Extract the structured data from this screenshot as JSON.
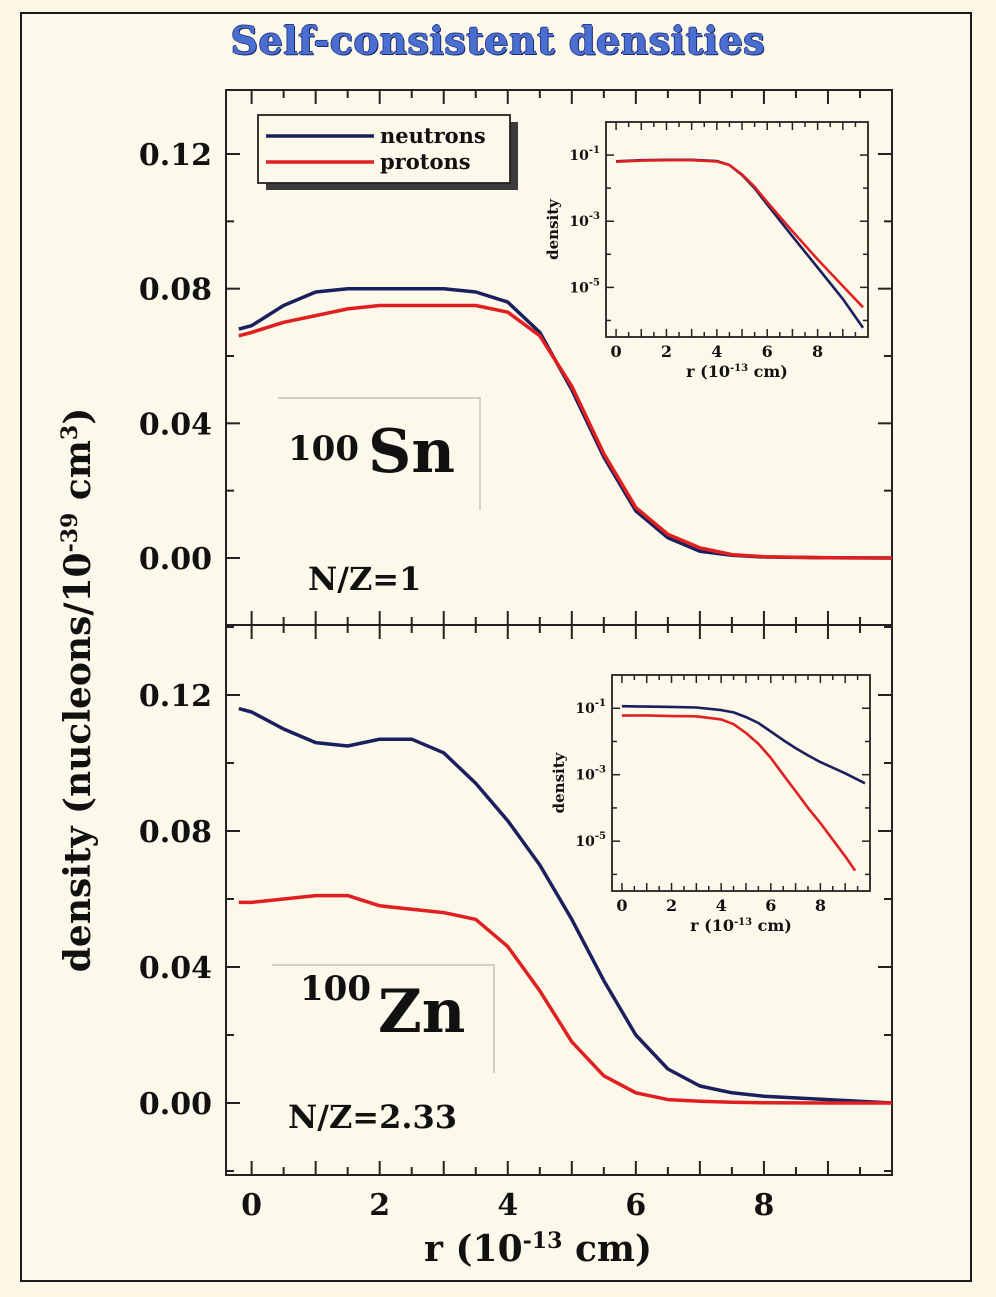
{
  "title": "Self-consistent densities",
  "ylabel": {
    "main": "density (nucleons/10",
    "exp": "-39",
    "unit": " cm",
    "unit_exp": "3",
    "close": ")"
  },
  "xlabel": {
    "main": "r (10",
    "exp": "-13",
    "unit": " cm)"
  },
  "colors": {
    "neutrons": "#1a1f5e",
    "protons": "#e02020"
  },
  "legend": {
    "neutrons": "neutrons",
    "protons": "protons"
  },
  "x_ticks": [
    "0",
    "2",
    "4",
    "6",
    "8"
  ],
  "y_ticks": [
    "0.00",
    "0.04",
    "0.08",
    "0.12"
  ],
  "panels": [
    {
      "nucleus_mass": "100",
      "nucleus_symbol": "Sn",
      "ratio_label": "N/Z=1"
    },
    {
      "nucleus_mass": "100",
      "nucleus_symbol": "Zn",
      "ratio_label": "N/Z=2.33"
    }
  ],
  "inset": {
    "ylabel": "density",
    "xlabel_main": "r (10",
    "xlabel_exp": "-13",
    "xlabel_unit": " cm)",
    "x_ticks": [
      "0",
      "2",
      "4",
      "6",
      "8"
    ],
    "y_ticks": [
      {
        "base": "10",
        "exp": "-1"
      },
      {
        "base": "10",
        "exp": "-3"
      },
      {
        "base": "10",
        "exp": "-5"
      }
    ]
  },
  "chart_data": [
    {
      "type": "line",
      "title": "Self-consistent densities",
      "xlabel": "r (10-13 cm)",
      "ylabel": "density (nucleons/10-39 cm3)",
      "xlim": [
        -0.4,
        10
      ],
      "ylim": [
        -0.02,
        0.14
      ],
      "annotations": [
        "100Sn",
        "N/Z=1"
      ],
      "legend": "top-left",
      "series": [
        {
          "name": "neutrons",
          "x": [
            -0.2,
            0,
            0.5,
            1,
            1.5,
            2,
            2.5,
            3,
            3.5,
            4,
            4.5,
            5,
            5.5,
            6,
            6.5,
            7,
            7.5,
            8,
            9,
            10
          ],
          "y": [
            0.068,
            0.069,
            0.075,
            0.079,
            0.08,
            0.08,
            0.08,
            0.08,
            0.079,
            0.076,
            0.067,
            0.05,
            0.03,
            0.014,
            0.006,
            0.002,
            0.0008,
            0.0003,
            0.0001,
            0.0
          ]
        },
        {
          "name": "protons",
          "x": [
            -0.2,
            0,
            0.5,
            1,
            1.5,
            2,
            2.5,
            3,
            3.5,
            4,
            4.5,
            5,
            5.5,
            6,
            6.5,
            7,
            7.5,
            8,
            9,
            10
          ],
          "y": [
            0.066,
            0.067,
            0.07,
            0.072,
            0.074,
            0.075,
            0.075,
            0.075,
            0.075,
            0.073,
            0.066,
            0.051,
            0.031,
            0.015,
            0.007,
            0.003,
            0.001,
            0.0004,
            0.0001,
            0.0
          ]
        }
      ]
    },
    {
      "type": "line",
      "xlabel": "r (10-13 cm)",
      "ylabel": "density",
      "xlim": [
        -0.4,
        10
      ],
      "scale": "log",
      "y_range_exp": [
        -6.5,
        0
      ],
      "series": [
        {
          "name": "neutrons",
          "x": [
            0,
            1,
            2,
            3,
            4,
            4.5,
            5,
            5.5,
            6,
            7,
            8,
            9,
            9.8
          ],
          "y": [
            0.065,
            0.07,
            0.072,
            0.072,
            0.066,
            0.05,
            0.025,
            0.01,
            0.0032,
            0.00035,
            4e-05,
            4.5e-06,
            6e-07
          ]
        },
        {
          "name": "protons",
          "x": [
            0,
            1,
            2,
            3,
            4,
            4.5,
            5,
            5.5,
            6,
            7,
            8,
            9,
            9.8
          ],
          "y": [
            0.063,
            0.068,
            0.07,
            0.07,
            0.064,
            0.05,
            0.026,
            0.011,
            0.0038,
            0.0005,
            7e-05,
            1.1e-05,
            2.5e-06
          ]
        }
      ]
    },
    {
      "type": "line",
      "xlabel": "r (10-13 cm)",
      "ylabel": "density (nucleons/10-39 cm3)",
      "xlim": [
        -0.4,
        10
      ],
      "ylim": [
        -0.02,
        0.14
      ],
      "annotations": [
        "100Zn",
        "N/Z=2.33"
      ],
      "series": [
        {
          "name": "neutrons",
          "x": [
            -0.2,
            0,
            0.5,
            1,
            1.5,
            2,
            2.5,
            3,
            3.5,
            4,
            4.5,
            5,
            5.5,
            6,
            6.5,
            7,
            7.5,
            8,
            9,
            10
          ],
          "y": [
            0.116,
            0.115,
            0.11,
            0.106,
            0.105,
            0.107,
            0.107,
            0.103,
            0.094,
            0.083,
            0.07,
            0.054,
            0.036,
            0.02,
            0.01,
            0.005,
            0.003,
            0.002,
            0.001,
            0.0
          ]
        },
        {
          "name": "protons",
          "x": [
            -0.2,
            0,
            0.5,
            1,
            1.5,
            2,
            2.5,
            3,
            3.5,
            4,
            4.5,
            5,
            5.5,
            6,
            6.5,
            7,
            7.5,
            8,
            9,
            10
          ],
          "y": [
            0.059,
            0.059,
            0.06,
            0.061,
            0.061,
            0.058,
            0.057,
            0.056,
            0.054,
            0.046,
            0.033,
            0.018,
            0.008,
            0.003,
            0.001,
            0.0005,
            0.0002,
            0.0001,
            0.0,
            0.0
          ]
        }
      ]
    },
    {
      "type": "line",
      "xlabel": "r (10-13 cm)",
      "ylabel": "density",
      "xlim": [
        -0.4,
        10
      ],
      "scale": "log",
      "y_range_exp": [
        -6.5,
        0
      ],
      "series": [
        {
          "name": "neutrons",
          "x": [
            0,
            1,
            2,
            3,
            4,
            4.5,
            5,
            5.5,
            6,
            6.5,
            7,
            7.5,
            8,
            9,
            9.8
          ],
          "y": [
            0.115,
            0.112,
            0.11,
            0.105,
            0.088,
            0.075,
            0.054,
            0.036,
            0.02,
            0.011,
            0.0063,
            0.0038,
            0.0024,
            0.0011,
            0.00055
          ]
        },
        {
          "name": "protons",
          "x": [
            0,
            1,
            2,
            3,
            4,
            4.5,
            5,
            5.5,
            6,
            6.5,
            7,
            7.5,
            8,
            9,
            9.4
          ],
          "y": [
            0.06,
            0.061,
            0.058,
            0.057,
            0.046,
            0.033,
            0.018,
            0.0085,
            0.0032,
            0.001,
            0.00032,
            0.0001,
            3.5e-05,
            3.5e-06,
            1.3e-06
          ]
        }
      ]
    }
  ]
}
